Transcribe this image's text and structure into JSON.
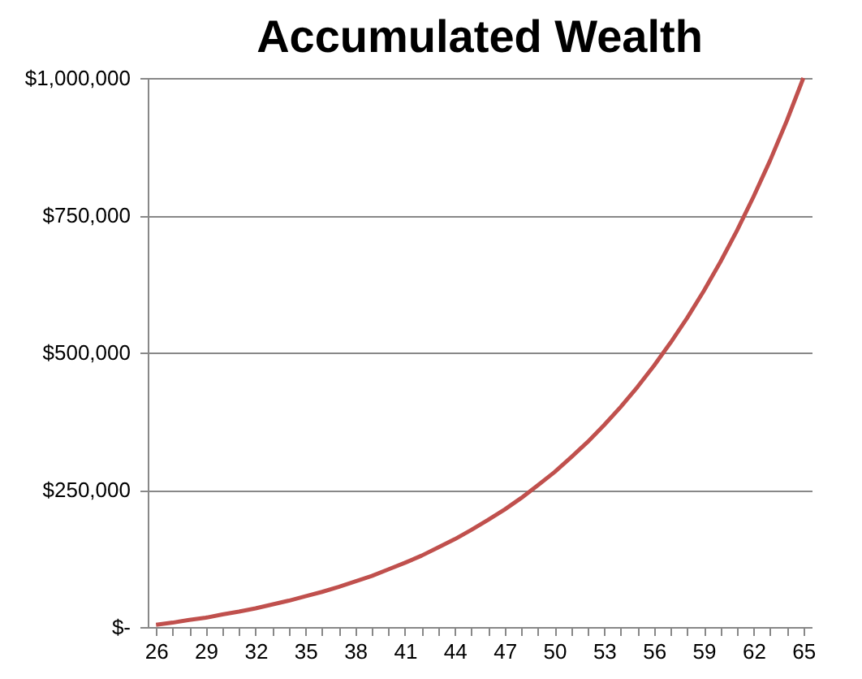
{
  "chart_data": {
    "type": "line",
    "title": "Accumulated Wealth",
    "categories": [
      "26",
      null,
      null,
      "29",
      null,
      null,
      "32",
      null,
      null,
      "35",
      null,
      null,
      "38",
      null,
      null,
      "41",
      null,
      null,
      "44",
      null,
      null,
      "47",
      null,
      null,
      "50",
      null,
      null,
      "53",
      null,
      null,
      "56",
      null,
      null,
      "59",
      null,
      null,
      "62",
      null,
      null,
      "65"
    ],
    "series": [
      {
        "color": "#c0504d",
        "values": [
          4000,
          8000,
          13000,
          17000,
          23000,
          28000,
          34000,
          41000,
          48000,
          56000,
          64000,
          73000,
          83000,
          93000,
          105000,
          117000,
          130000,
          145000,
          160000,
          177000,
          195000,
          214000,
          235000,
          258000,
          282000,
          309000,
          337000,
          368000,
          401000,
          437000,
          476000,
          518000,
          563000,
          612000,
          665000,
          722000,
          784000,
          850000,
          922000,
          1000000
        ]
      }
    ],
    "ylim": [
      0,
      1000000
    ],
    "yticks": [
      {
        "value": 0,
        "label": "$-"
      },
      {
        "value": 250000,
        "label": "$250,000"
      },
      {
        "value": 500000,
        "label": "$500,000"
      },
      {
        "value": 750000,
        "label": "$750,000"
      },
      {
        "value": 1000000,
        "label": "$1,000,000"
      }
    ],
    "grid": "y",
    "marker": "none",
    "line_style": "solid"
  }
}
